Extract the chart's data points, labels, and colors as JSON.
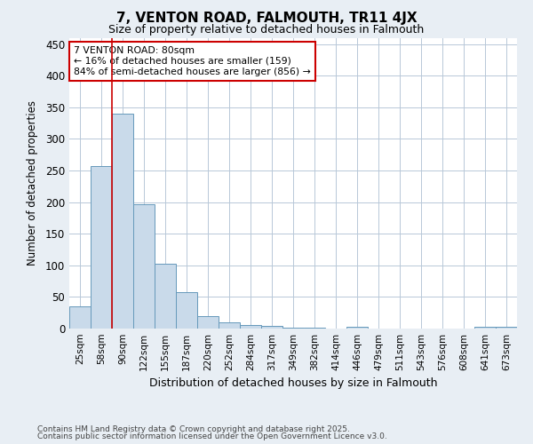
{
  "title": "7, VENTON ROAD, FALMOUTH, TR11 4JX",
  "subtitle": "Size of property relative to detached houses in Falmouth",
  "xlabel": "Distribution of detached houses by size in Falmouth",
  "ylabel": "Number of detached properties",
  "categories": [
    "25sqm",
    "58sqm",
    "90sqm",
    "122sqm",
    "155sqm",
    "187sqm",
    "220sqm",
    "252sqm",
    "284sqm",
    "317sqm",
    "349sqm",
    "382sqm",
    "414sqm",
    "446sqm",
    "479sqm",
    "511sqm",
    "543sqm",
    "576sqm",
    "608sqm",
    "641sqm",
    "673sqm"
  ],
  "values": [
    35,
    257,
    340,
    197,
    103,
    57,
    20,
    10,
    6,
    4,
    2,
    1,
    0,
    3,
    0,
    0,
    0,
    0,
    0,
    3,
    3
  ],
  "bar_color": "#c9daea",
  "bar_edge_color": "#6699bb",
  "vline_x": 1.5,
  "vline_color": "#cc0000",
  "annotation_text": "7 VENTON ROAD: 80sqm\n← 16% of detached houses are smaller (159)\n84% of semi-detached houses are larger (856) →",
  "annotation_box_color": "white",
  "annotation_box_edge_color": "#cc0000",
  "ylim": [
    0,
    460
  ],
  "yticks": [
    0,
    50,
    100,
    150,
    200,
    250,
    300,
    350,
    400,
    450
  ],
  "footer_line1": "Contains HM Land Registry data © Crown copyright and database right 2025.",
  "footer_line2": "Contains public sector information licensed under the Open Government Licence v3.0.",
  "background_color": "#e8eef4",
  "plot_background_color": "white",
  "grid_color": "#b8c8d8"
}
